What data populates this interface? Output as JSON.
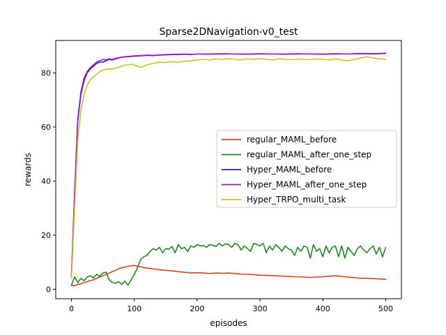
{
  "chart_data": {
    "type": "line",
    "title": "Sparse2DNavigation-v0_test",
    "xlabel": "episodes",
    "ylabel": "rewards",
    "xlim": [
      -25,
      525
    ],
    "ylim": [
      -3.5,
      92
    ],
    "xticks": [
      0,
      100,
      200,
      300,
      400,
      500
    ],
    "yticks": [
      0,
      20,
      40,
      60,
      80
    ],
    "legend_position": "center-right",
    "series": [
      {
        "name": "regular_MAML_before",
        "color": "#d2431a",
        "x": [
          0,
          5,
          10,
          15,
          20,
          25,
          30,
          35,
          40,
          45,
          50,
          55,
          60,
          65,
          70,
          75,
          80,
          85,
          90,
          95,
          100,
          105,
          110,
          115,
          120,
          130,
          140,
          150,
          160,
          170,
          180,
          190,
          200,
          210,
          220,
          230,
          240,
          250,
          260,
          270,
          280,
          290,
          300,
          310,
          320,
          330,
          340,
          350,
          360,
          370,
          380,
          390,
          400,
          410,
          420,
          430,
          440,
          450,
          460,
          470,
          480,
          490,
          500
        ],
        "values": [
          1.5,
          1.3,
          1.8,
          2.0,
          2.5,
          2.8,
          3.2,
          3.5,
          4.0,
          4.5,
          5.0,
          5.5,
          6.0,
          6.5,
          7.0,
          7.5,
          8.0,
          8.2,
          8.5,
          8.7,
          8.8,
          8.5,
          8.3,
          8.0,
          7.8,
          7.5,
          7.2,
          7.0,
          6.8,
          6.5,
          6.3,
          6.0,
          6.1,
          6.0,
          5.8,
          6.0,
          5.9,
          6.0,
          5.8,
          5.6,
          5.5,
          5.4,
          5.2,
          5.1,
          5.0,
          4.9,
          4.8,
          4.7,
          4.6,
          4.5,
          4.4,
          4.5,
          4.6,
          4.8,
          5.0,
          4.7,
          4.5,
          4.3,
          4.0,
          4.1,
          3.9,
          3.8,
          3.7
        ]
      },
      {
        "name": "regular_MAML_after_one_step",
        "color": "#1a8a1a",
        "x": [
          0,
          5,
          10,
          15,
          20,
          25,
          30,
          35,
          40,
          45,
          50,
          55,
          60,
          65,
          70,
          75,
          80,
          85,
          90,
          95,
          100,
          105,
          110,
          115,
          120,
          125,
          130,
          135,
          140,
          145,
          150,
          155,
          160,
          165,
          170,
          175,
          180,
          185,
          190,
          195,
          200,
          205,
          210,
          215,
          220,
          225,
          230,
          235,
          240,
          245,
          250,
          255,
          260,
          265,
          270,
          275,
          280,
          285,
          290,
          295,
          300,
          305,
          310,
          315,
          320,
          325,
          330,
          335,
          340,
          345,
          350,
          355,
          360,
          365,
          370,
          375,
          380,
          385,
          390,
          395,
          400,
          405,
          410,
          415,
          420,
          425,
          430,
          435,
          440,
          445,
          450,
          455,
          460,
          465,
          470,
          475,
          480,
          485,
          490,
          495,
          500
        ],
        "values": [
          1.5,
          4.5,
          2.5,
          4.0,
          3.2,
          4.5,
          5.0,
          4.2,
          5.5,
          4.8,
          6.0,
          6.3,
          3.5,
          2.5,
          2.2,
          2.8,
          1.8,
          3.0,
          1.5,
          3.5,
          5.5,
          8.0,
          11.0,
          12.0,
          12.5,
          14.0,
          15.0,
          14.5,
          15.5,
          13.5,
          15.0,
          14.8,
          15.8,
          13.5,
          16.5,
          15.0,
          15.5,
          14.0,
          16.0,
          15.5,
          16.5,
          16.0,
          16.2,
          15.5,
          16.5,
          16.3,
          15.8,
          17.0,
          16.0,
          16.8,
          16.5,
          15.5,
          17.0,
          16.5,
          14.5,
          16.0,
          15.0,
          14.0,
          17.0,
          16.5,
          16.0,
          17.0,
          13.5,
          16.0,
          14.5,
          16.5,
          15.5,
          14.0,
          16.0,
          15.0,
          14.5,
          12.5,
          15.5,
          14.0,
          16.0,
          15.5,
          11.5,
          16.5,
          14.0,
          15.0,
          12.0,
          16.0,
          13.5,
          15.5,
          16.0,
          12.0,
          16.0,
          11.5,
          15.5,
          14.0,
          12.5,
          15.0,
          16.0,
          14.5,
          13.5,
          15.0,
          16.0,
          13.0,
          15.5,
          12.0,
          15.5
        ]
      },
      {
        "name": "Hyper_MAML_before",
        "color": "#2222cc",
        "x": [
          0,
          5,
          10,
          15,
          20,
          25,
          30,
          35,
          40,
          45,
          50,
          55,
          60,
          65,
          70,
          75,
          80,
          90,
          100,
          110,
          120,
          130,
          140,
          150,
          160,
          170,
          180,
          190,
          200,
          220,
          240,
          260,
          280,
          300,
          320,
          340,
          360,
          380,
          400,
          420,
          440,
          460,
          480,
          500
        ],
        "values": [
          5.0,
          35.0,
          62.0,
          72.0,
          77.0,
          80.0,
          81.5,
          82.5,
          83.5,
          84.0,
          84.0,
          84.5,
          85.0,
          84.8,
          85.2,
          85.5,
          85.8,
          86.0,
          86.2,
          86.3,
          86.5,
          86.4,
          86.6,
          86.7,
          86.8,
          86.8,
          86.9,
          86.8,
          87.0,
          86.9,
          87.0,
          87.0,
          86.9,
          87.0,
          87.0,
          86.9,
          87.0,
          87.0,
          86.9,
          87.0,
          87.0,
          87.1,
          87.0,
          87.2
        ]
      },
      {
        "name": "Hyper_MAML_after_one_step",
        "color": "#b012c8",
        "x": [
          0,
          5,
          10,
          15,
          20,
          25,
          30,
          35,
          40,
          45,
          50,
          55,
          60,
          65,
          70,
          75,
          80,
          90,
          100,
          110,
          120,
          130,
          140,
          150,
          160,
          170,
          180,
          190,
          200,
          220,
          240,
          260,
          280,
          300,
          320,
          340,
          360,
          380,
          400,
          420,
          440,
          460,
          480,
          500
        ],
        "values": [
          5.0,
          36.0,
          63.0,
          73.0,
          78.0,
          80.5,
          82.0,
          83.0,
          84.0,
          84.5,
          85.0,
          84.8,
          85.2,
          85.0,
          85.4,
          85.6,
          85.9,
          86.1,
          86.3,
          86.4,
          86.6,
          86.5,
          86.7,
          86.8,
          86.9,
          86.9,
          87.0,
          86.9,
          87.0,
          87.0,
          87.1,
          87.0,
          87.0,
          87.1,
          87.0,
          87.0,
          87.1,
          87.0,
          87.0,
          87.1,
          87.0,
          87.2,
          87.1,
          87.3
        ]
      },
      {
        "name": "Hyper_TRPO_multi_task",
        "color": "#c4c420",
        "x": [
          0,
          5,
          10,
          15,
          20,
          25,
          30,
          35,
          40,
          45,
          50,
          55,
          60,
          65,
          70,
          75,
          80,
          85,
          90,
          95,
          100,
          105,
          110,
          115,
          120,
          130,
          140,
          150,
          160,
          170,
          180,
          190,
          200,
          210,
          220,
          230,
          240,
          250,
          260,
          270,
          280,
          290,
          300,
          310,
          320,
          330,
          340,
          350,
          360,
          370,
          380,
          390,
          400,
          410,
          420,
          430,
          440,
          450,
          460,
          470,
          480,
          490,
          500
        ],
        "values": [
          4.0,
          30.0,
          55.0,
          66.0,
          72.0,
          75.5,
          77.5,
          78.5,
          79.5,
          80.5,
          81.0,
          81.3,
          81.5,
          81.5,
          81.8,
          82.0,
          82.5,
          82.8,
          83.0,
          83.2,
          83.0,
          82.5,
          82.0,
          82.5,
          83.0,
          83.5,
          84.0,
          83.8,
          84.2,
          84.0,
          84.3,
          84.5,
          84.8,
          85.0,
          84.8,
          85.2,
          85.0,
          85.3,
          85.0,
          84.8,
          85.2,
          85.0,
          85.3,
          85.0,
          84.8,
          85.2,
          85.0,
          84.9,
          85.1,
          85.0,
          84.9,
          85.2,
          85.0,
          84.8,
          85.2,
          84.8,
          84.5,
          85.0,
          85.5,
          86.0,
          85.5,
          85.2,
          85.0
        ]
      }
    ]
  }
}
